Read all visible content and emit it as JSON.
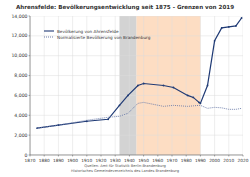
{
  "chart_data": {
    "type": "line",
    "title": "Ahrensfelde: Bevölkerungsentwicklung seit 1875 - Grenzen von 2019",
    "x": [
      1875,
      1890,
      1910,
      1925,
      1933,
      1939,
      1946,
      1950,
      1964,
      1971,
      1981,
      1985,
      1989,
      1990,
      1995,
      2000,
      2005,
      2010,
      2015,
      2019
    ],
    "series": [
      {
        "name": "Bevölkerung von Ahrensfelde",
        "color": "#1f3a75",
        "line_style": "solid",
        "marker": "circle",
        "values": [
          2700,
          3000,
          3400,
          3600,
          5000,
          6000,
          7000,
          7200,
          7000,
          6800,
          6000,
          5800,
          5300,
          5200,
          7000,
          11500,
          12800,
          12900,
          13000,
          13800
        ]
      },
      {
        "name": "Normalisierte Bevölkerung von Brandenburg",
        "color": "#6a7aa8",
        "line_style": "dotted",
        "marker": "none",
        "values": [
          2700,
          3000,
          3500,
          3800,
          3900,
          4200,
          5200,
          5300,
          4900,
          5000,
          4900,
          4950,
          5000,
          5000,
          4700,
          4800,
          4750,
          4600,
          4600,
          4700
        ]
      }
    ],
    "xlim": [
      1870,
      2020
    ],
    "xticks": [
      1870,
      1880,
      1890,
      1900,
      1910,
      1920,
      1930,
      1940,
      1950,
      1960,
      1970,
      1980,
      1990,
      2000,
      2010,
      2020
    ],
    "ylim": [
      0,
      14000
    ],
    "yticks": [
      0,
      {
        "value": 2000,
        "label": "2,000"
      },
      {
        "value": 4000,
        "label": "4,000"
      },
      {
        "value": 6000,
        "label": "6,000"
      },
      {
        "value": 8000,
        "label": "8,000"
      },
      {
        "value": 10000,
        "label": "10,000"
      },
      {
        "value": 12000,
        "label": "12,000"
      },
      {
        "value": 14000,
        "label": "14,000"
      }
    ],
    "grid": true,
    "legend": "upper left",
    "shaded_regions": [
      {
        "from": 1933,
        "to": 1945,
        "color": "#c8c8c8"
      },
      {
        "from": 1945,
        "to": 1990,
        "color": "#fcd5b4"
      }
    ],
    "footer": [
      "Quellen: Amt für Statistik Berlin-Brandenburg",
      "Historisches Gemeindeverzeichnis des Landes Brandenburg"
    ]
  }
}
